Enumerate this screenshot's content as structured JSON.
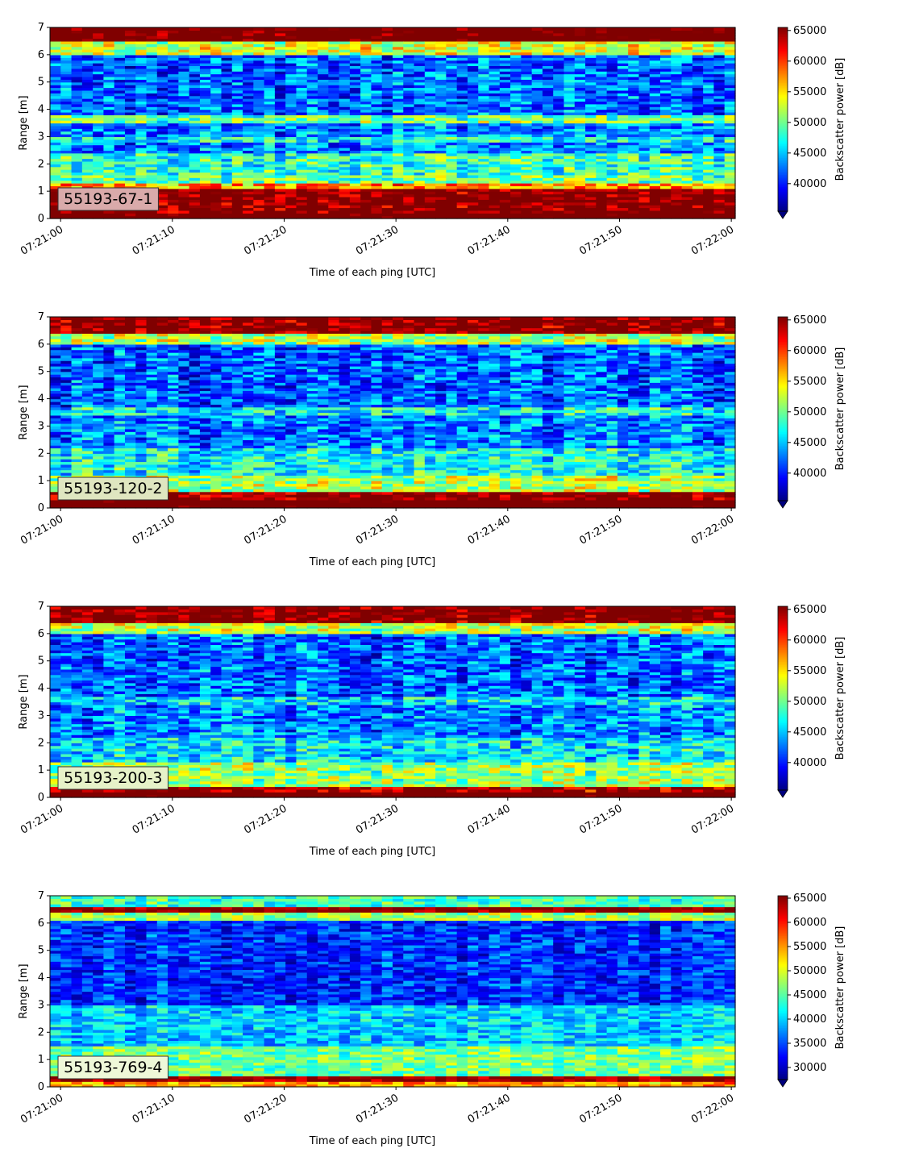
{
  "chart_data": [
    {
      "type": "heatmap",
      "label": "55193-67-1",
      "label_box_color": "#d9aaaa",
      "xlabel": "Time of each ping [UTC]",
      "ylabel": "Range [m]",
      "xlim": [
        "07:21:00",
        "07:22:00"
      ],
      "ylim": [
        0,
        7
      ],
      "xticks": [
        "07:21:00",
        "07:21:10",
        "07:21:20",
        "07:21:30",
        "07:21:40",
        "07:21:50",
        "07:22:00"
      ],
      "yticks": [
        "0",
        "1",
        "2",
        "3",
        "4",
        "5",
        "6",
        "7"
      ],
      "colorbar": {
        "label": "Backscatter power [dB]",
        "min": 35500,
        "max": 65500,
        "ticks": [
          40000,
          45000,
          50000,
          55000,
          60000,
          65000
        ],
        "tick_labels": [
          "40000",
          "45000",
          "50000",
          "55000",
          "60000",
          "65000"
        ],
        "extend": "min",
        "cmap": "jet"
      },
      "profile": [
        {
          "range": [
            0.0,
            0.2
          ],
          "value": 70000
        },
        {
          "range": [
            0.2,
            1.1
          ],
          "value": 66000
        },
        {
          "range": [
            1.1,
            1.3
          ],
          "value": 57000
        },
        {
          "range": [
            1.3,
            1.6
          ],
          "value": 50000
        },
        {
          "range": [
            1.6,
            2.4
          ],
          "value": 48000
        },
        {
          "range": [
            2.4,
            2.8
          ],
          "value": 43000
        },
        {
          "range": [
            2.8,
            3.0
          ],
          "value": 47000
        },
        {
          "range": [
            3.0,
            3.5
          ],
          "value": 43000
        },
        {
          "range": [
            3.5,
            3.8
          ],
          "value": 50000
        },
        {
          "range": [
            3.8,
            6.0
          ],
          "value": 42000
        },
        {
          "range": [
            6.0,
            6.5
          ],
          "value": 53000
        },
        {
          "range": [
            6.5,
            7.0
          ],
          "value": 68000
        }
      ]
    },
    {
      "type": "heatmap",
      "label": "55193-120-2",
      "label_box_color": "#dfe6c0",
      "xlabel": "Time of each ping [UTC]",
      "ylabel": "Range [m]",
      "xlim": [
        "07:21:00",
        "07:22:00"
      ],
      "ylim": [
        0,
        7
      ],
      "xticks": [
        "07:21:00",
        "07:21:10",
        "07:21:20",
        "07:21:30",
        "07:21:40",
        "07:21:50",
        "07:22:00"
      ],
      "yticks": [
        "0",
        "1",
        "2",
        "3",
        "4",
        "5",
        "6",
        "7"
      ],
      "colorbar": {
        "label": "Backscatter power [dB]",
        "min": 35500,
        "max": 65500,
        "ticks": [
          40000,
          45000,
          50000,
          55000,
          60000,
          65000
        ],
        "tick_labels": [
          "40000",
          "45000",
          "50000",
          "55000",
          "60000",
          "65000"
        ],
        "extend": "min",
        "cmap": "jet"
      },
      "profile": [
        {
          "range": [
            0.0,
            0.3
          ],
          "value": 70000
        },
        {
          "range": [
            0.3,
            0.6
          ],
          "value": 66000
        },
        {
          "range": [
            0.6,
            1.2
          ],
          "value": 52000
        },
        {
          "range": [
            1.2,
            2.2
          ],
          "value": 47000
        },
        {
          "range": [
            2.2,
            3.4
          ],
          "value": 43000
        },
        {
          "range": [
            3.4,
            3.7
          ],
          "value": 47000
        },
        {
          "range": [
            3.7,
            6.0
          ],
          "value": 42000
        },
        {
          "range": [
            6.0,
            6.4
          ],
          "value": 52000
        },
        {
          "range": [
            6.4,
            7.0
          ],
          "value": 66000
        }
      ]
    },
    {
      "type": "heatmap",
      "label": "55193-200-3",
      "label_box_color": "#e6f2c8",
      "xlabel": "Time of each ping [UTC]",
      "ylabel": "Range [m]",
      "xlim": [
        "07:21:00",
        "07:22:00"
      ],
      "ylim": [
        0,
        7
      ],
      "xticks": [
        "07:21:00",
        "07:21:10",
        "07:21:20",
        "07:21:30",
        "07:21:40",
        "07:21:50",
        "07:22:00"
      ],
      "yticks": [
        "0",
        "1",
        "2",
        "3",
        "4",
        "5",
        "6",
        "7"
      ],
      "colorbar": {
        "label": "Backscatter power [dB]",
        "min": 35500,
        "max": 65500,
        "ticks": [
          40000,
          45000,
          50000,
          55000,
          60000,
          65000
        ],
        "tick_labels": [
          "40000",
          "45000",
          "50000",
          "55000",
          "60000",
          "65000"
        ],
        "extend": "min",
        "cmap": "jet"
      },
      "profile": [
        {
          "range": [
            0.0,
            0.2
          ],
          "value": 70000
        },
        {
          "range": [
            0.2,
            0.4
          ],
          "value": 64000
        },
        {
          "range": [
            0.4,
            1.3
          ],
          "value": 51000
        },
        {
          "range": [
            1.3,
            2.2
          ],
          "value": 46000
        },
        {
          "range": [
            2.2,
            3.4
          ],
          "value": 43000
        },
        {
          "range": [
            3.4,
            3.7
          ],
          "value": 46000
        },
        {
          "range": [
            3.7,
            6.0
          ],
          "value": 42000
        },
        {
          "range": [
            6.0,
            6.4
          ],
          "value": 52000
        },
        {
          "range": [
            6.4,
            7.0
          ],
          "value": 66000
        }
      ]
    },
    {
      "type": "heatmap",
      "label": "55193-769-4",
      "label_box_color": "#eef8d8",
      "xlabel": "Time of each ping [UTC]",
      "ylabel": "Range [m]",
      "xlim": [
        "07:21:00",
        "07:22:00"
      ],
      "ylim": [
        0,
        7
      ],
      "xticks": [
        "07:21:00",
        "07:21:10",
        "07:21:20",
        "07:21:30",
        "07:21:40",
        "07:21:50",
        "07:22:00"
      ],
      "yticks": [
        "0",
        "1",
        "2",
        "3",
        "4",
        "5",
        "6",
        "7"
      ],
      "colorbar": {
        "label": "Backscatter power [dB]",
        "min": 27500,
        "max": 65500,
        "ticks": [
          30000,
          35000,
          40000,
          45000,
          50000,
          55000,
          60000,
          65000
        ],
        "tick_labels": [
          "30000",
          "35000",
          "40000",
          "45000",
          "50000",
          "55000",
          "60000",
          "65000"
        ],
        "extend": "min",
        "cmap": "jet"
      },
      "profile": [
        {
          "range": [
            0.0,
            0.15
          ],
          "value": 55000
        },
        {
          "range": [
            0.15,
            0.35
          ],
          "value": 66000
        },
        {
          "range": [
            0.35,
            1.5
          ],
          "value": 46000
        },
        {
          "range": [
            1.5,
            3.0
          ],
          "value": 40000
        },
        {
          "range": [
            3.0,
            6.1
          ],
          "value": 34000
        },
        {
          "range": [
            6.1,
            6.35
          ],
          "value": 48000
        },
        {
          "range": [
            6.35,
            6.6
          ],
          "value": 66000
        },
        {
          "range": [
            6.6,
            7.0
          ],
          "value": 44000
        }
      ]
    }
  ]
}
